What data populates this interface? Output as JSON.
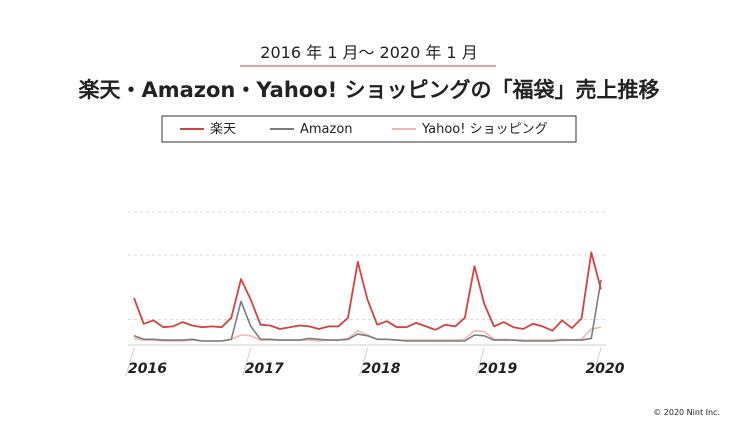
{
  "header": {
    "subtitle": "2016 年 1 月〜 2020 年 1 月",
    "title": "楽天・Amazon・Yahoo! ショッピングの「福袋」売上推移"
  },
  "footer": {
    "copyright": "© 2020 Nint Inc."
  },
  "chart_data": {
    "type": "line",
    "title": "楽天・Amazon・Yahoo! ショッピングの「福袋」売上推移",
    "subtitle": "2016 年 1 月〜 2020 年 1 月",
    "xlabel": "",
    "ylabel": "",
    "x_tick_labels": [
      "2016",
      "2017",
      "2018",
      "2019",
      "2020"
    ],
    "ylim": [
      0,
      100
    ],
    "grid": true,
    "legend_position": "top",
    "x": [
      "2016-01",
      "2016-02",
      "2016-03",
      "2016-04",
      "2016-05",
      "2016-06",
      "2016-07",
      "2016-08",
      "2016-09",
      "2016-10",
      "2016-11",
      "2016-12",
      "2017-01",
      "2017-02",
      "2017-03",
      "2017-04",
      "2017-05",
      "2017-06",
      "2017-07",
      "2017-08",
      "2017-09",
      "2017-10",
      "2017-11",
      "2017-12",
      "2018-01",
      "2018-02",
      "2018-03",
      "2018-04",
      "2018-05",
      "2018-06",
      "2018-07",
      "2018-08",
      "2018-09",
      "2018-10",
      "2018-11",
      "2018-12",
      "2019-01",
      "2019-02",
      "2019-03",
      "2019-04",
      "2019-05",
      "2019-06",
      "2019-07",
      "2019-08",
      "2019-09",
      "2019-10",
      "2019-11",
      "2019-12",
      "2020-01"
    ],
    "series": [
      {
        "name": "楽天",
        "color": "#d9413d",
        "values": [
          50,
          20,
          24,
          16,
          17,
          22,
          18,
          16,
          17,
          16,
          27,
          72,
          48,
          19,
          18,
          14,
          16,
          18,
          17,
          14,
          17,
          17,
          27,
          92,
          48,
          19,
          23,
          16,
          16,
          21,
          17,
          13,
          19,
          17,
          27,
          87,
          43,
          17,
          22,
          16,
          14,
          20,
          17,
          12,
          24,
          15,
          26,
          103,
          60
        ]
      },
      {
        "name": "Amazon",
        "color": "#7d7d7d",
        "values": [
          6,
          2,
          2,
          1,
          1,
          1,
          2,
          0,
          0,
          0,
          2,
          46,
          17,
          2,
          2,
          1,
          1,
          1,
          3,
          2,
          1,
          1,
          2,
          8,
          6,
          2,
          2,
          1,
          0,
          0,
          0,
          0,
          0,
          0,
          0,
          7,
          6,
          1,
          1,
          1,
          0,
          0,
          0,
          0,
          1,
          1,
          1,
          3,
          71
        ]
      },
      {
        "name": "Yahoo! ショッピング",
        "color": "#f0b8b5",
        "values": [
          3,
          1,
          1,
          0,
          0,
          0,
          1,
          0,
          0,
          0,
          2,
          7,
          6,
          1,
          1,
          1,
          1,
          1,
          1,
          0,
          1,
          1,
          3,
          12,
          7,
          2,
          2,
          1,
          1,
          1,
          1,
          1,
          1,
          1,
          2,
          12,
          11,
          2,
          2,
          1,
          1,
          1,
          1,
          1,
          2,
          1,
          2,
          14,
          16
        ]
      }
    ]
  }
}
